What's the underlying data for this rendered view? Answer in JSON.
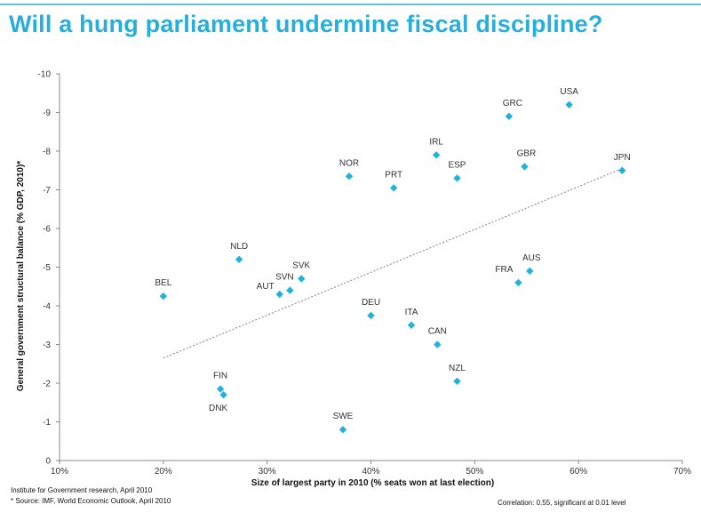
{
  "title": "Will a hung parliament undermine fiscal discipline?",
  "footnotes": {
    "source_line1": "Institute for Government research, April 2010",
    "source_line2": "* Source: IMF, World Economic Outlook, April 2010",
    "correlation": "Correlation: 0.55, significant at 0.01 level"
  },
  "colors": {
    "title": "#27aedb",
    "marker": "#1fb2dd",
    "trendline": "#808080"
  },
  "chart_data": {
    "type": "scatter",
    "title": "Will a hung parliament undermine fiscal discipline?",
    "xlabel": "Size of largest party in 2010 (% seats won at last election)",
    "ylabel": "General government structural balance (% GDP, 2010)*",
    "xlim": [
      10,
      70
    ],
    "ylim": [
      0,
      -10
    ],
    "x_ticks": [
      10,
      20,
      30,
      40,
      50,
      60,
      70
    ],
    "x_tick_labels": [
      "10%",
      "20%",
      "30%",
      "40%",
      "50%",
      "60%",
      "70%"
    ],
    "y_ticks": [
      0,
      -1,
      -2,
      -3,
      -4,
      -5,
      -6,
      -7,
      -8,
      -9,
      -10
    ],
    "y_tick_labels": [
      "0",
      "-1",
      "-2",
      "-3",
      "-4",
      "-5",
      "-6",
      "-7",
      "-8",
      "-9",
      "-10"
    ],
    "grid": false,
    "points": [
      {
        "label": "USA",
        "x": 59.1,
        "y": -9.2
      },
      {
        "label": "GRC",
        "x": 53.3,
        "y": -8.9
      },
      {
        "label": "IRL",
        "x": 46.3,
        "y": -7.9
      },
      {
        "label": "GBR",
        "x": 54.8,
        "y": -7.6
      },
      {
        "label": "JPN",
        "x": 64.2,
        "y": -7.5
      },
      {
        "label": "NOR",
        "x": 37.9,
        "y": -7.35
      },
      {
        "label": "ESP",
        "x": 48.3,
        "y": -7.3
      },
      {
        "label": "PRT",
        "x": 42.2,
        "y": -7.05
      },
      {
        "label": "NLD",
        "x": 27.3,
        "y": -5.2
      },
      {
        "label": "AUS",
        "x": 55.3,
        "y": -4.9
      },
      {
        "label": "SVK",
        "x": 33.3,
        "y": -4.7
      },
      {
        "label": "FRA",
        "x": 54.2,
        "y": -4.6
      },
      {
        "label": "SVN",
        "x": 32.2,
        "y": -4.4
      },
      {
        "label": "AUT",
        "x": 31.2,
        "y": -4.3
      },
      {
        "label": "BEL",
        "x": 20.0,
        "y": -4.25
      },
      {
        "label": "DEU",
        "x": 40.0,
        "y": -3.75
      },
      {
        "label": "ITA",
        "x": 43.9,
        "y": -3.5
      },
      {
        "label": "CAN",
        "x": 46.4,
        "y": -3.0
      },
      {
        "label": "NZL",
        "x": 48.3,
        "y": -2.05
      },
      {
        "label": "FIN",
        "x": 25.5,
        "y": -1.85
      },
      {
        "label": "DNK",
        "x": 25.8,
        "y": -1.7
      },
      {
        "label": "SWE",
        "x": 37.3,
        "y": -0.8
      }
    ],
    "trendline": {
      "type": "linear",
      "x_start": 20.0,
      "x_end": 64.2,
      "y_start": -2.65,
      "y_end": -7.55
    }
  }
}
